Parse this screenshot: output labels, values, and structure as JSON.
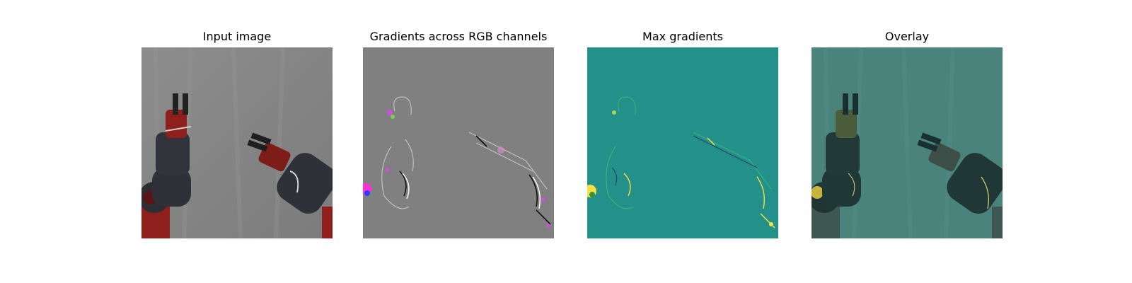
{
  "figure": {
    "panels": [
      {
        "title": "Input image",
        "content": "robot-arms-photo"
      },
      {
        "title": "Gradients across RGB channels",
        "content": "rgb-gradient-map"
      },
      {
        "title": "Max gradients",
        "content": "max-gradient-map"
      },
      {
        "title": "Overlay",
        "content": "gradient-overlay"
      }
    ]
  },
  "colors": {
    "background_wall": "#8a8a8a",
    "robot_dark": "#2e3238",
    "robot_red": "#8e1f1c",
    "gradient_gray": "#808080",
    "saliency_teal": "#23918a",
    "overlay_teal": "#487f79",
    "hot_yellow": "#f5e042",
    "hot_magenta": "#d14fd4"
  }
}
